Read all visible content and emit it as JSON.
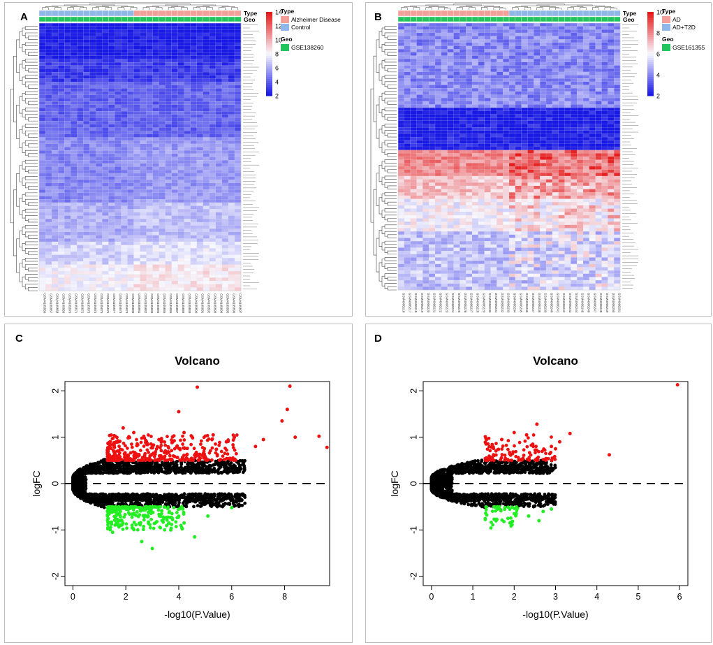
{
  "colors": {
    "low": "#1919e6",
    "mid": "#f8f8ff",
    "high": "#e61919",
    "type_ad": "#f4a09a",
    "type_ctrl": "#8fb7e8",
    "geo": "#22c45e",
    "up": "#ee1111",
    "down": "#22ee22",
    "ns": "#000000"
  },
  "chart_data": [
    {
      "panel": "A",
      "type": "heatmap",
      "rows": 82,
      "cols": 32,
      "row_pattern": [
        2,
        2,
        2,
        2,
        2,
        2,
        2,
        2,
        2,
        2,
        2,
        3,
        3,
        3,
        3,
        3,
        3,
        3,
        4,
        4,
        4,
        4,
        4,
        4,
        4,
        4,
        4,
        4,
        4,
        4,
        4,
        4,
        4,
        4,
        4,
        5,
        5,
        5,
        5,
        5,
        5,
        5,
        5,
        5,
        5,
        5,
        5,
        5,
        5,
        5,
        5,
        5,
        5,
        5,
        5,
        6,
        6,
        6,
        6,
        6,
        6,
        6,
        6,
        6,
        6,
        6,
        6,
        7,
        7,
        7,
        7,
        7,
        7,
        7,
        8,
        8,
        8,
        8,
        8,
        8,
        8,
        8
      ],
      "color_scale": {
        "min": 2,
        "max": 14,
        "ticks": [
          2,
          4,
          6,
          8,
          10,
          12,
          14
        ]
      },
      "annotation": {
        "type_label": "Type",
        "geo_label": "Geo",
        "legend_type_title": "Type",
        "legend_geo_title": "Geo",
        "groups": [
          {
            "name": "Control",
            "count": 15,
            "color": "#8fb7e8"
          },
          {
            "name": "Alzheimer Disease",
            "count": 17,
            "color": "#f4a09a"
          }
        ],
        "legend_order": [
          "Alzheimer Disease",
          "Control"
        ],
        "geo": "GSE138260"
      },
      "col_labels": [
        "GSM4105866",
        "GSM4105867",
        "GSM4105868",
        "GSM4105869",
        "GSM4105870",
        "GSM4105871",
        "GSM4105872",
        "GSM4105873",
        "GSM4105874",
        "GSM4105875",
        "GSM4105876",
        "GSM4105877",
        "GSM4105878",
        "GSM4105879",
        "GSM4105880",
        "GSM4105881",
        "GSM4105882",
        "GSM4105883",
        "GSM4105884",
        "GSM4105885",
        "GSM4105886",
        "GSM4105887",
        "GSM4105888",
        "GSM4105889",
        "GSM4105890",
        "GSM4105891",
        "GSM4105892",
        "GSM4105893",
        "GSM4105894",
        "GSM4105895",
        "GSM4105896",
        "GSM4105897"
      ]
    },
    {
      "panel": "B",
      "type": "heatmap",
      "rows": 82,
      "cols": 36,
      "row_pattern": [
        4,
        4,
        4,
        4,
        4,
        4,
        4,
        4,
        4,
        4,
        4,
        4,
        4,
        4,
        4,
        4,
        4,
        4,
        4,
        4,
        4,
        4,
        4,
        4,
        4,
        4,
        2,
        2,
        2,
        2,
        2,
        2,
        2,
        2,
        2,
        2,
        2,
        2,
        2,
        8,
        8,
        8,
        8,
        8,
        8,
        8,
        8,
        7,
        7,
        7,
        7,
        7,
        7,
        7,
        6,
        6,
        6,
        6,
        6,
        6,
        6,
        6,
        6,
        6,
        5,
        5,
        5,
        5,
        5,
        5,
        5,
        5,
        5,
        5,
        5,
        5,
        5,
        5,
        5,
        5,
        5,
        5
      ],
      "color_scale": {
        "min": 2,
        "max": 10,
        "ticks": [
          2,
          4,
          6,
          8,
          10
        ]
      },
      "annotation": {
        "type_label": "Type",
        "geo_label": "Geo",
        "legend_type_title": "Type",
        "legend_geo_title": "Geo",
        "groups": [
          {
            "name": "AD",
            "count": 18,
            "color": "#f4a09a"
          },
          {
            "name": "AD+T2D",
            "count": 18,
            "color": "#8fb7e8"
          }
        ],
        "legend_order": [
          "AD",
          "AD+T2D"
        ],
        "geo": "GSE161355"
      },
      "col_labels": [
        "GSM4906216",
        "GSM4906217",
        "GSM4906218",
        "GSM4906219",
        "GSM4906220",
        "GSM4906221",
        "GSM4906222",
        "GSM4906223",
        "GSM4906224",
        "GSM4906225",
        "GSM4906226",
        "GSM4906227",
        "GSM4906228",
        "GSM4906229",
        "GSM4906230",
        "GSM4906231",
        "GSM4906232",
        "GSM4906233",
        "GSM4906234",
        "GSM4906235",
        "GSM4906236",
        "GSM4906237",
        "GSM4906238",
        "GSM4906239",
        "GSM4906240",
        "GSM4906241",
        "GSM4906242",
        "GSM4906243",
        "GSM4906244",
        "GSM4906245",
        "GSM4906246",
        "GSM4906247",
        "GSM4906248",
        "GSM4906249",
        "GSM4906250",
        "GSM4906251"
      ]
    },
    {
      "panel": "C",
      "type": "scatter",
      "title": "Volcano",
      "xlabel": "-log10(P.Value)",
      "ylabel": "logFC",
      "xlim": [
        -0.3,
        9.7
      ],
      "ylim": [
        -2.2,
        2.2
      ],
      "xticks": [
        0,
        2,
        4,
        6,
        8
      ],
      "yticks": [
        -2,
        -1,
        0,
        1,
        2
      ],
      "hline": 0,
      "thresholds": {
        "logfc": 0.5,
        "neglogp": 1.3
      },
      "ns_cloud": {
        "xmax": 6.5,
        "n": 2200
      },
      "up_points": [
        [
          4.7,
          2.08
        ],
        [
          8.2,
          2.1
        ],
        [
          8.1,
          1.6
        ],
        [
          4.0,
          1.55
        ],
        [
          7.9,
          1.35
        ],
        [
          9.6,
          0.78
        ],
        [
          9.3,
          1.02
        ],
        [
          8.4,
          1.0
        ],
        [
          4.2,
          1.1
        ],
        [
          1.9,
          1.2
        ],
        [
          2.3,
          1.1
        ],
        [
          5.3,
          1.05
        ],
        [
          6.1,
          1.0
        ],
        [
          7.2,
          0.95
        ],
        [
          6.9,
          0.8
        ],
        [
          5.8,
          0.9
        ]
      ],
      "up_cloud": {
        "n": 380,
        "xmax": 6.2
      },
      "down_points": [
        [
          3.0,
          -1.4
        ],
        [
          4.6,
          -1.15
        ],
        [
          6.0,
          -0.52
        ],
        [
          5.1,
          -0.7
        ],
        [
          4.2,
          -0.85
        ],
        [
          2.6,
          -1.25
        ],
        [
          3.7,
          -1.0
        ],
        [
          1.5,
          -1.05
        ]
      ],
      "down_cloud": {
        "n": 240,
        "xmax": 4.2
      }
    },
    {
      "panel": "D",
      "type": "scatter",
      "title": "Volcano",
      "xlabel": "-log10(P.Value)",
      "ylabel": "logFC",
      "xlim": [
        -0.2,
        6.2
      ],
      "ylim": [
        -2.2,
        2.2
      ],
      "xticks": [
        0,
        1,
        2,
        3,
        4,
        5,
        6
      ],
      "yticks": [
        -2,
        -1,
        0,
        1,
        2
      ],
      "hline": 0,
      "thresholds": {
        "logfc": 0.5,
        "neglogp": 1.3
      },
      "ns_cloud": {
        "xmax": 3.0,
        "n": 1800
      },
      "up_points": [
        [
          5.95,
          2.13
        ],
        [
          4.3,
          0.62
        ],
        [
          3.35,
          1.08
        ],
        [
          3.1,
          0.9
        ],
        [
          2.55,
          1.28
        ],
        [
          2.3,
          1.05
        ],
        [
          2.0,
          1.1
        ],
        [
          1.7,
          0.95
        ],
        [
          2.9,
          0.8
        ],
        [
          2.45,
          0.85
        ],
        [
          3.0,
          0.75
        ]
      ],
      "up_cloud": {
        "n": 110,
        "xmax": 3.0
      },
      "down_points": [
        [
          2.7,
          -0.6
        ],
        [
          2.6,
          -0.8
        ],
        [
          2.35,
          -0.7
        ],
        [
          2.05,
          -0.65
        ],
        [
          1.85,
          -0.75
        ],
        [
          2.9,
          -0.55
        ],
        [
          1.6,
          -0.55
        ]
      ],
      "down_cloud": {
        "n": 45,
        "xmax": 2.1
      }
    }
  ],
  "panel_labels": {
    "A": "A",
    "B": "B",
    "C": "C",
    "D": "D"
  }
}
